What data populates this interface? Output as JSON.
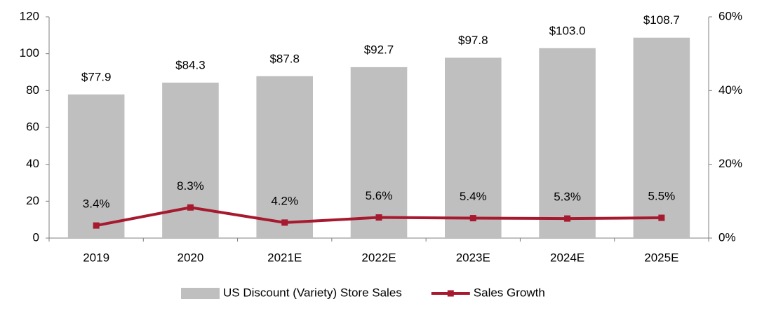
{
  "chart_data": {
    "type": "combo",
    "categories": [
      "2019",
      "2020",
      "2021E",
      "2022E",
      "2023E",
      "2024E",
      "2025E"
    ],
    "series": [
      {
        "name": "US Discount (Variety) Store Sales",
        "type": "bar",
        "color": "#bfbfbf",
        "values": [
          77.9,
          84.3,
          87.8,
          92.7,
          97.8,
          103.0,
          108.7
        ],
        "value_labels": [
          "$77.9",
          "$84.3",
          "$87.8",
          "$92.7",
          "$97.8",
          "$103.0",
          "$108.7"
        ]
      },
      {
        "name": "Sales Growth",
        "type": "line",
        "axis": "y2",
        "color": "#a6192e",
        "values": [
          3.4,
          8.3,
          4.2,
          5.6,
          5.4,
          5.3,
          5.5
        ],
        "value_labels": [
          "3.4%",
          "8.3%",
          "4.2%",
          "5.6%",
          "5.4%",
          "5.3%",
          "5.5%"
        ]
      }
    ],
    "ylim": [
      0,
      120
    ],
    "yticks": [
      0,
      20,
      40,
      60,
      80,
      100,
      120
    ],
    "y2lim": [
      0,
      60
    ],
    "y2ticks": [
      {
        "value": 0,
        "label": "0%"
      },
      {
        "value": 20,
        "label": "20%"
      },
      {
        "value": 40,
        "label": "40%"
      },
      {
        "value": 60,
        "label": "60%"
      }
    ],
    "grid": false
  }
}
